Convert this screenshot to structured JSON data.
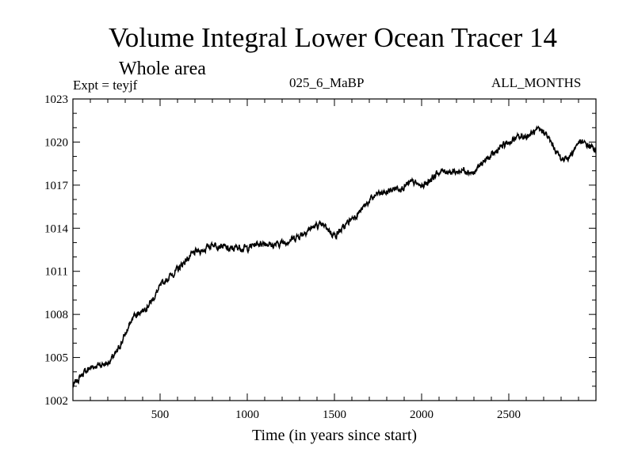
{
  "header": {
    "title": "Volume Integral Lower Ocean Tracer 14",
    "subtitle": "Whole area",
    "experiment": "Expt = teyjf",
    "case": "025_6_MaBP",
    "months": "ALL_MONTHS"
  },
  "chart_data": {
    "type": "line",
    "title": "Volume Integral Lower Ocean Tracer 14",
    "subtitle": "Whole area",
    "xlabel": "Time (in years since start)",
    "ylabel": "",
    "xlim": [
      0,
      3000
    ],
    "ylim": [
      1002,
      1023
    ],
    "x_ticks": [
      500,
      1000,
      1500,
      2000,
      2500
    ],
    "y_ticks": [
      1002,
      1005,
      1008,
      1011,
      1014,
      1017,
      1020,
      1023
    ],
    "series": [
      {
        "name": "Tracer 14",
        "color": "#000000",
        "x": [
          0,
          50,
          100,
          150,
          200,
          250,
          300,
          350,
          400,
          450,
          500,
          550,
          600,
          650,
          700,
          750,
          800,
          850,
          900,
          950,
          1000,
          1050,
          1100,
          1150,
          1200,
          1250,
          1300,
          1350,
          1400,
          1450,
          1500,
          1550,
          1600,
          1650,
          1700,
          1750,
          1800,
          1850,
          1900,
          1950,
          2000,
          2050,
          2100,
          2150,
          2200,
          2250,
          2300,
          2350,
          2400,
          2450,
          2500,
          2550,
          2600,
          2650,
          2700,
          2750,
          2800,
          2850,
          2900,
          2950,
          3000
        ],
        "values": [
          1003.0,
          1003.8,
          1004.3,
          1004.5,
          1004.6,
          1005.3,
          1006.6,
          1007.9,
          1008.3,
          1008.9,
          1009.9,
          1010.6,
          1011.1,
          1011.8,
          1012.3,
          1012.5,
          1012.9,
          1012.8,
          1012.5,
          1012.7,
          1012.6,
          1012.9,
          1013.0,
          1012.8,
          1013.0,
          1013.2,
          1013.5,
          1013.9,
          1014.2,
          1014.1,
          1013.5,
          1014.0,
          1014.7,
          1015.2,
          1015.9,
          1016.4,
          1016.5,
          1016.8,
          1016.9,
          1017.2,
          1016.9,
          1017.4,
          1017.9,
          1018.0,
          1017.9,
          1018.1,
          1017.8,
          1018.6,
          1019.0,
          1019.6,
          1020.0,
          1020.3,
          1020.4,
          1020.7,
          1020.8,
          1019.8,
          1018.8,
          1019.0,
          1020.0,
          1019.8,
          1019.5
        ]
      }
    ]
  }
}
